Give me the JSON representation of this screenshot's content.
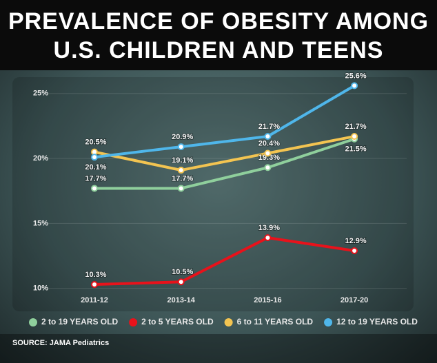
{
  "chart_data": {
    "type": "line",
    "title": "PREVALENCE OF OBESITY AMONG",
    "subtitle": "U.S. CHILDREN AND TEENS",
    "categories": [
      "2011-12",
      "2013-14",
      "2015-16",
      "2017-20"
    ],
    "series": [
      {
        "name": "2 to 19 YEARS OLD",
        "color": "#8fcf9c",
        "values": [
          17.7,
          17.7,
          19.3,
          21.5
        ],
        "value_labels": [
          "17.7%",
          "17.7%",
          "19.3%",
          "21.5%"
        ]
      },
      {
        "name": "2 to 5 YEARS OLD",
        "color": "#e8121b",
        "values": [
          10.3,
          10.5,
          13.9,
          12.9
        ],
        "value_labels": [
          "10.3%",
          "10.5%",
          "13.9%",
          "12.9%"
        ]
      },
      {
        "name": "6 to 11 YEARS OLD",
        "color": "#f3c451",
        "values": [
          20.5,
          19.1,
          20.4,
          21.7
        ],
        "value_labels": [
          "20.5%",
          "19.1%",
          "20.4%",
          "21.7%"
        ]
      },
      {
        "name": "12 to 19 YEARS OLD",
        "color": "#4fb6ea",
        "values": [
          20.1,
          20.9,
          21.7,
          25.6
        ],
        "value_labels": [
          "20.1%",
          "20.9%",
          "21.7%",
          "25.6%"
        ]
      }
    ],
    "ylim": [
      9.4,
      26.1
    ],
    "yticks": [
      {
        "value": 10,
        "label": "10%"
      },
      {
        "value": 15,
        "label": "15%"
      },
      {
        "value": 20,
        "label": "20%"
      },
      {
        "value": 25,
        "label": "25%"
      }
    ],
    "source": "SOURCE: JAMA Pediatrics"
  }
}
